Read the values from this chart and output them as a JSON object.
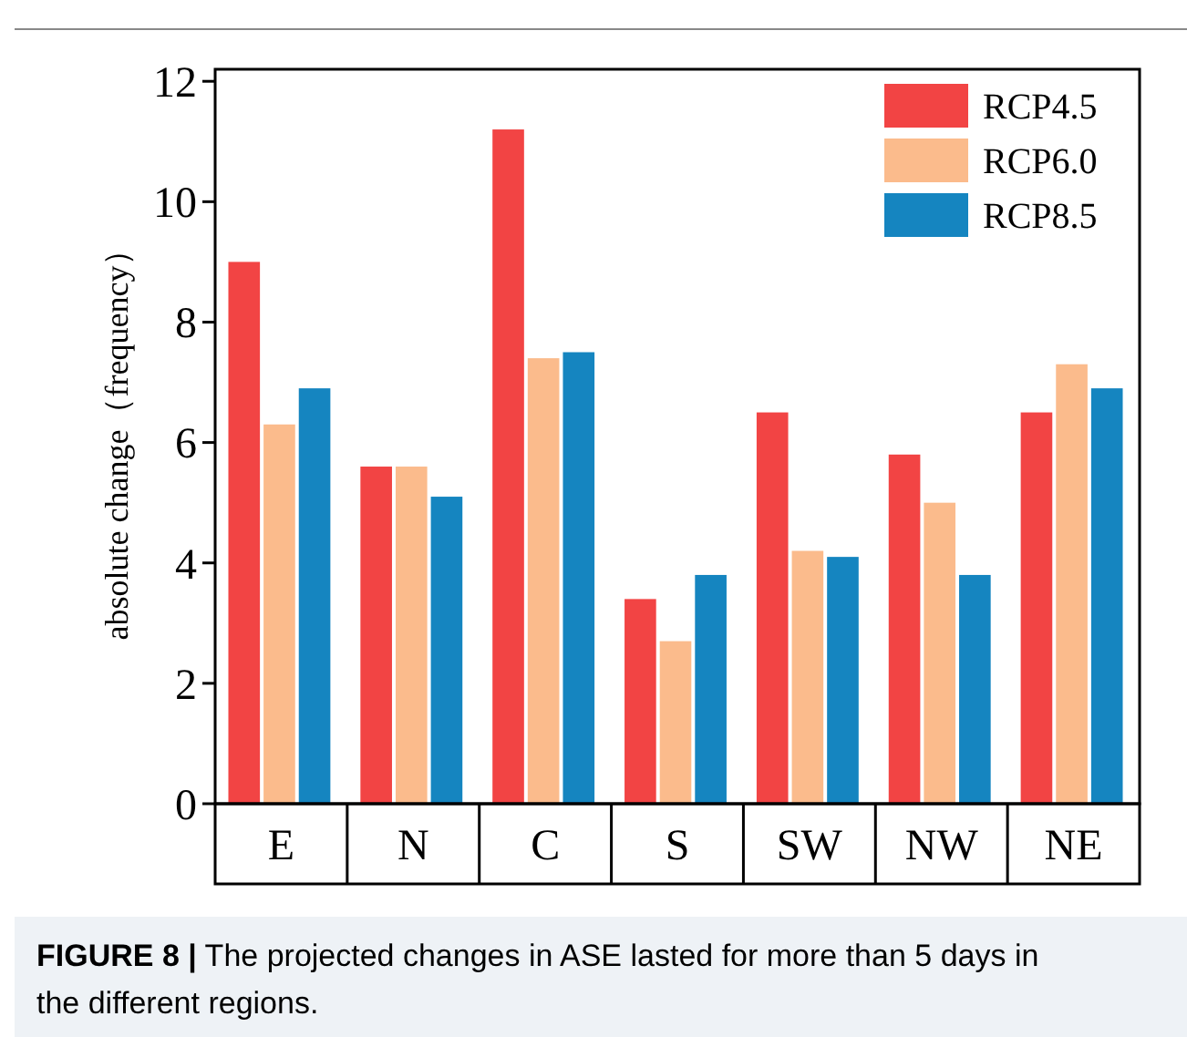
{
  "chart_data": {
    "type": "bar",
    "ylabel": "absolute change（frequency）",
    "categories": [
      "E",
      "N",
      "C",
      "S",
      "SW",
      "NW",
      "NE"
    ],
    "series": [
      {
        "name": "RCP4.5",
        "color": "#f24444",
        "values": [
          9.0,
          5.6,
          11.2,
          3.4,
          6.5,
          5.8,
          6.5
        ]
      },
      {
        "name": "RCP6.0",
        "color": "#fbbb8c",
        "values": [
          6.3,
          5.6,
          7.4,
          2.7,
          4.2,
          5.0,
          7.3
        ]
      },
      {
        "name": "RCP8.5",
        "color": "#1585c0",
        "values": [
          6.9,
          5.1,
          7.5,
          3.8,
          4.1,
          3.8,
          6.9
        ]
      }
    ],
    "ylim": [
      0,
      12.2
    ],
    "yticks": [
      0,
      2,
      4,
      6,
      8,
      10,
      12
    ],
    "legend": "top right",
    "grid": false,
    "annotations": [
      "FIGURE 8 | The projected changes in ASE lasted for more than 5 days in the different regions."
    ]
  }
}
